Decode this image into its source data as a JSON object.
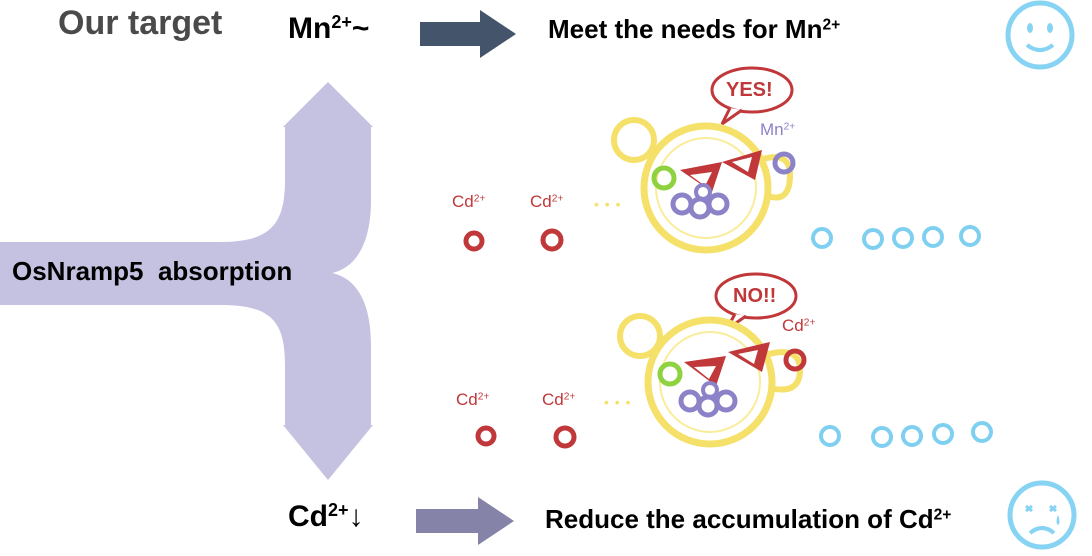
{
  "title": "Our target",
  "top_ion": {
    "base": "Mn",
    "charge": "2+",
    "suffix": "~"
  },
  "bottom_ion": {
    "base": "Cd",
    "charge": "2+",
    "suffix": "↓"
  },
  "top_result": {
    "text": "Meet the needs for Mn",
    "charge": "2+"
  },
  "bottom_result": {
    "text": "Reduce the accumulation of Cd",
    "charge": "2+"
  },
  "branch_label": "OsNramp5  absorption",
  "top_scene": {
    "bubble": "YES!",
    "ion_labels": [
      {
        "base": "Cd",
        "charge": "2+"
      },
      {
        "base": "Cd",
        "charge": "2+"
      }
    ],
    "bound_label": {
      "base": "Mn",
      "charge": "2+"
    },
    "dots": "• • •"
  },
  "bottom_scene": {
    "bubble": "NO!!",
    "ion_labels": [
      {
        "base": "Cd",
        "charge": "2+"
      },
      {
        "base": "Cd",
        "charge": "2+"
      }
    ],
    "bound_label": {
      "base": "Cd",
      "charge": "2+"
    },
    "dots": "• • •"
  },
  "colors": {
    "arrow_branch": "#c4c2e0",
    "arrow_top": "#44546a",
    "arrow_bottom": "#8584a8",
    "cd_ion": "#c0383a",
    "mn_ion": "#8b82c8",
    "water_ion": "#7fd0f0",
    "creature": "#f5e06a",
    "face": "#86d3f4"
  },
  "icons": {
    "happy_face": "smiley-face-icon",
    "sad_face": "sad-face-icon"
  }
}
